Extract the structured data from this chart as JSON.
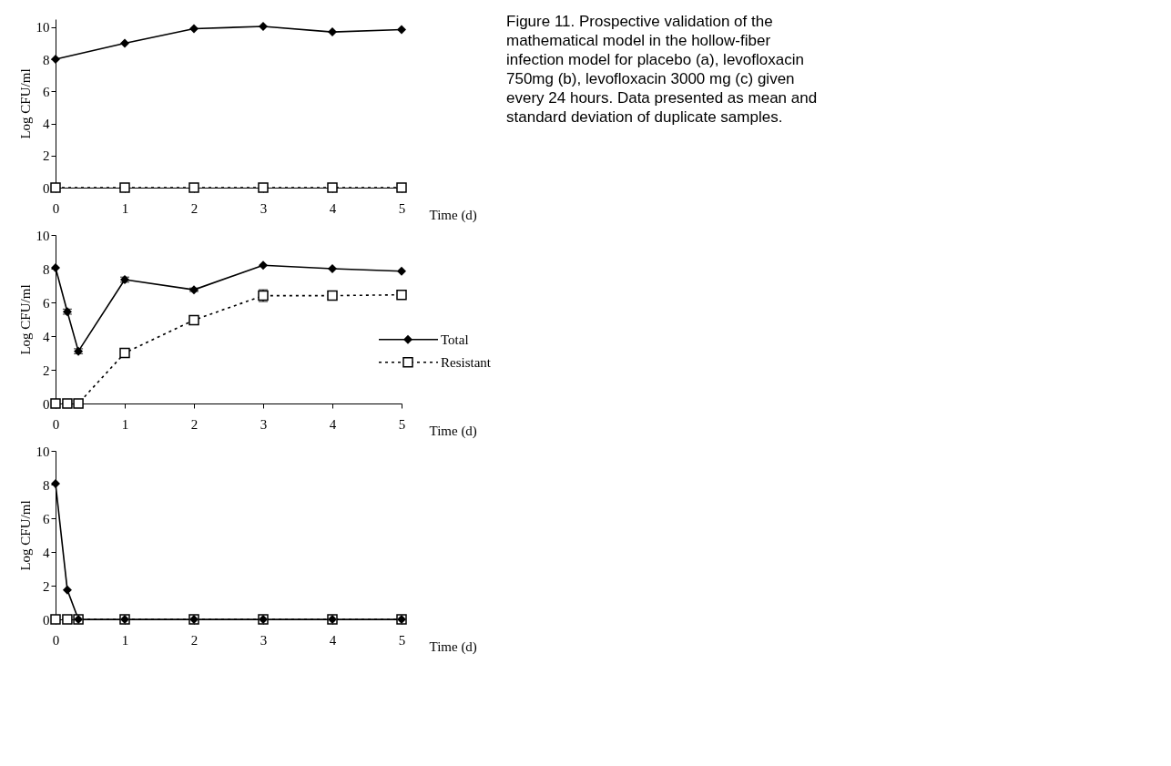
{
  "chart_data": [
    {
      "type": "line",
      "ylabel": "Log CFU/ml",
      "xlabel": "Time (d)",
      "xlim": [
        0,
        5
      ],
      "xticks": [
        0,
        1,
        2,
        3,
        4,
        5
      ],
      "ylim": [
        0,
        10.5
      ],
      "yticks": [
        0,
        2,
        4,
        6,
        8,
        10
      ],
      "grid": false,
      "legend": false,
      "annotations": [
        "Figure 11.  Prospective validation of the mathematical model in the hollow-fiber infection model for placebo (a), levofloxacin 750mg (b), levofloxacin 3000 mg (c) given every 24 hours.  Data presented as mean and standard deviation of duplicate samples."
      ],
      "x": [
        0,
        1,
        2,
        3,
        4,
        5
      ],
      "series": [
        {
          "color": "#000000",
          "marker": "diamond",
          "line_style": "solid",
          "values": [
            8.0,
            9.0,
            9.9,
            10.05,
            9.7,
            9.85
          ]
        },
        {
          "color": "#000000",
          "marker": "square",
          "line_style": "dotted",
          "values": [
            0,
            0,
            0,
            0,
            0,
            0
          ]
        }
      ]
    },
    {
      "type": "line",
      "ylabel": "Log CFU/ml",
      "xlabel": "Time (d)",
      "xlim": [
        0,
        5
      ],
      "xticks": [
        0,
        1,
        2,
        3,
        4,
        5
      ],
      "ylim": [
        0,
        10
      ],
      "yticks": [
        0,
        2,
        4,
        6,
        8,
        10
      ],
      "grid": false,
      "legend": "right",
      "x": [
        0,
        0.17,
        0.33,
        1,
        2,
        3,
        4,
        5
      ],
      "series": [
        {
          "name": "Total",
          "color": "#000000",
          "marker": "diamond",
          "line_style": "solid",
          "values": [
            8.05,
            5.45,
            3.1,
            7.35,
            6.75,
            8.2,
            8.0,
            7.85
          ],
          "errors": [
            null,
            0.15,
            0.15,
            0.15,
            0.1,
            null,
            null,
            null
          ]
        },
        {
          "name": "Resistant",
          "color": "#000000",
          "marker": "square",
          "line_style": "dotted",
          "values": [
            0,
            0,
            0,
            3.0,
            4.95,
            6.4,
            6.4,
            6.45
          ],
          "errors": [
            null,
            null,
            null,
            0.15,
            0.15,
            0.35,
            0.15,
            0.25
          ]
        }
      ]
    },
    {
      "type": "line",
      "ylabel": "Log CFU/ml",
      "xlabel": "Time (d)",
      "xlim": [
        0,
        5
      ],
      "xticks": [
        0,
        1,
        2,
        3,
        4,
        5
      ],
      "ylim": [
        0,
        10
      ],
      "yticks": [
        0,
        2,
        4,
        6,
        8,
        10
      ],
      "grid": false,
      "legend": false,
      "x": [
        0,
        0.17,
        0.33,
        1,
        2,
        3,
        4,
        5
      ],
      "series": [
        {
          "color": "#000000",
          "marker": "diamond",
          "line_style": "solid",
          "values": [
            8.05,
            1.75,
            0,
            0,
            0,
            0,
            0,
            0
          ]
        },
        {
          "color": "#000000",
          "marker": "square",
          "line_style": "dotted",
          "values": [
            0,
            0,
            0,
            0,
            0,
            0,
            0,
            0
          ]
        }
      ]
    }
  ]
}
